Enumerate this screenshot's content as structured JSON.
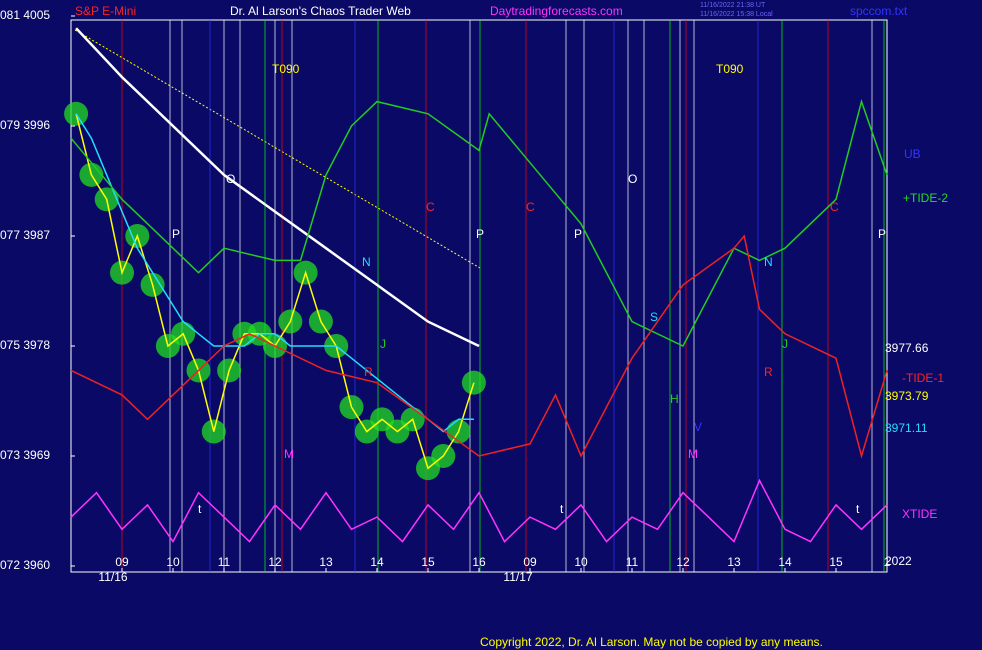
{
  "header": {
    "symbol": "S&P E-Mini",
    "title": "Dr. Al Larson's Chaos Trader Web",
    "site": "Daytradingforecasts.com",
    "stamp_ut": "11/16/2022 21:38 UT",
    "stamp_local": "11/16/2022 15:38 Local",
    "file": "spccom.txt"
  },
  "copyright": "Copyright 2022, Dr. Al Larson. May not be copied by any means.",
  "right_labels": [
    {
      "text": "UB",
      "color": "#3333ff"
    },
    {
      "text": "+TIDE-2",
      "color": "#22dd22"
    },
    {
      "text": "3977.66",
      "color": "#ffffff"
    },
    {
      "text": "-TIDE-1",
      "color": "#ff2222"
    },
    {
      "text": "3973.79",
      "color": "#ffff00"
    },
    {
      "text": "3971.11",
      "color": "#22ddff"
    },
    {
      "text": "XTIDE",
      "color": "#ff33ff"
    },
    {
      "text": "2022",
      "color": "#ffffff"
    }
  ],
  "annotations": [
    "T090",
    "T090",
    "O",
    "O",
    "P",
    "P",
    "P",
    "P",
    "C",
    "C",
    "C",
    "N",
    "N",
    "J",
    "J",
    "R",
    "R",
    "S",
    "H",
    "V",
    "M",
    "M",
    "t",
    "t",
    "t"
  ],
  "date_labels": [
    "11/16",
    "11/17"
  ],
  "chart_data": {
    "type": "line",
    "xlim": [
      -1,
      15
    ],
    "ylim": [
      3960,
      4005
    ],
    "xticks": [
      {
        "value": 0,
        "label": "09"
      },
      {
        "value": 1,
        "label": "10"
      },
      {
        "value": 2,
        "label": "11"
      },
      {
        "value": 3,
        "label": "12"
      },
      {
        "value": 4,
        "label": "13"
      },
      {
        "value": 5,
        "label": "14"
      },
      {
        "value": 6,
        "label": "15"
      },
      {
        "value": 7,
        "label": "16"
      },
      {
        "value": 8,
        "label": "09"
      },
      {
        "value": 9,
        "label": "10"
      },
      {
        "value": 10,
        "label": "11"
      },
      {
        "value": 11,
        "label": "12"
      },
      {
        "value": 12,
        "label": "13"
      },
      {
        "value": 13,
        "label": "14"
      },
      {
        "value": 14,
        "label": "15"
      },
      {
        "value": 15,
        "label": "1"
      }
    ],
    "yticks": [
      {
        "value": 4005,
        "label": "081 4005"
      },
      {
        "value": 3996,
        "label": "079 3996"
      },
      {
        "value": 3987,
        "label": "077 3987"
      },
      {
        "value": 3978,
        "label": "075 3978"
      },
      {
        "value": 3969,
        "label": "073 3969"
      },
      {
        "value": 3960,
        "label": "072 3960"
      }
    ],
    "series": [
      {
        "color": "#ffff00",
        "bubbles": true,
        "x": [
          -0.9,
          -0.6,
          -0.3,
          0,
          0.3,
          0.6,
          0.9,
          1.2,
          1.5,
          1.8,
          2.1,
          2.4,
          2.7,
          3.0,
          3.3,
          3.6,
          3.9,
          4.2,
          4.5,
          4.8,
          5.1,
          5.4,
          5.7,
          6.0,
          6.3,
          6.6,
          6.9
        ],
        "values": [
          3997,
          3992,
          3990,
          3984,
          3987,
          3983,
          3978,
          3979,
          3976,
          3971,
          3976,
          3979,
          3979,
          3978,
          3980,
          3984,
          3980,
          3978,
          3973,
          3971,
          3972,
          3971,
          3972,
          3968,
          3969,
          3971,
          3975
        ]
      },
      {
        "color": "#22ddff",
        "x": [
          -0.9,
          -0.6,
          -0.3,
          0,
          0.3,
          0.6,
          0.9,
          1.2,
          1.5,
          1.8,
          2.1,
          2.4,
          2.7,
          3.0,
          3.3,
          3.6,
          3.9,
          4.2,
          4.5,
          4.8,
          5.1,
          5.4,
          5.7,
          6.0,
          6.3,
          6.6,
          6.9
        ],
        "values": [
          3997,
          3995,
          3992,
          3989,
          3986,
          3984,
          3982,
          3980,
          3979,
          3978,
          3978,
          3978,
          3979,
          3979,
          3978,
          3978,
          3978,
          3978,
          3977,
          3976,
          3975,
          3974,
          3973,
          3972,
          3971,
          3972,
          3972
        ]
      },
      {
        "color": "#ffffff",
        "x": [
          -0.9,
          0,
          1,
          2,
          3,
          4,
          5,
          6,
          7
        ],
        "values": [
          4004,
          4000,
          3996,
          3992,
          3989,
          3986,
          3983,
          3980,
          3978
        ]
      },
      {
        "color": "#22cc22",
        "x": [
          -1,
          0,
          1,
          1.5,
          2,
          3,
          3.5,
          4,
          4.5,
          5,
          6,
          7,
          7.2,
          8,
          9,
          10,
          11,
          12,
          12.5,
          13,
          14,
          14.5,
          15
        ],
        "values": [
          3995,
          3990,
          3986,
          3984,
          3986,
          3985,
          3985,
          3992,
          3996,
          3998,
          3997,
          3994,
          3997,
          3993,
          3988,
          3980,
          3978,
          3986,
          3985,
          3986,
          3990,
          3998,
          3992
        ]
      },
      {
        "color": "#ee2222",
        "x": [
          -1,
          0,
          0.5,
          1,
          2,
          2.5,
          3,
          4,
          5,
          6,
          7,
          8,
          8.5,
          9,
          10,
          11,
          12,
          12.2,
          12.5,
          13,
          14,
          14.5,
          15
        ],
        "values": [
          3976,
          3974,
          3972,
          3974,
          3978,
          3979,
          3978,
          3976,
          3975,
          3972,
          3969,
          3970,
          3974,
          3969,
          3977,
          3983,
          3986,
          3987,
          3981,
          3979,
          3977,
          3969,
          3976
        ]
      },
      {
        "color": "#ff33ff",
        "x": [
          -1,
          -0.5,
          0,
          0.5,
          1,
          1.5,
          2,
          2.5,
          3,
          3.5,
          4,
          4.5,
          5,
          5.5,
          6,
          6.5,
          7,
          7.5,
          8,
          8.5,
          9,
          9.5,
          10,
          10.5,
          11,
          11.5,
          12,
          12.5,
          13,
          13.5,
          14,
          14.5,
          15
        ],
        "values": [
          3964,
          3966,
          3963,
          3965,
          3962,
          3966,
          3964,
          3962,
          3965,
          3963,
          3966,
          3963,
          3964,
          3962,
          3965,
          3963,
          3966,
          3962,
          3964,
          3963,
          3965,
          3962,
          3964,
          3963,
          3966,
          3964,
          3962,
          3967,
          3963,
          3962,
          3965,
          3963,
          3965
        ]
      }
    ]
  }
}
